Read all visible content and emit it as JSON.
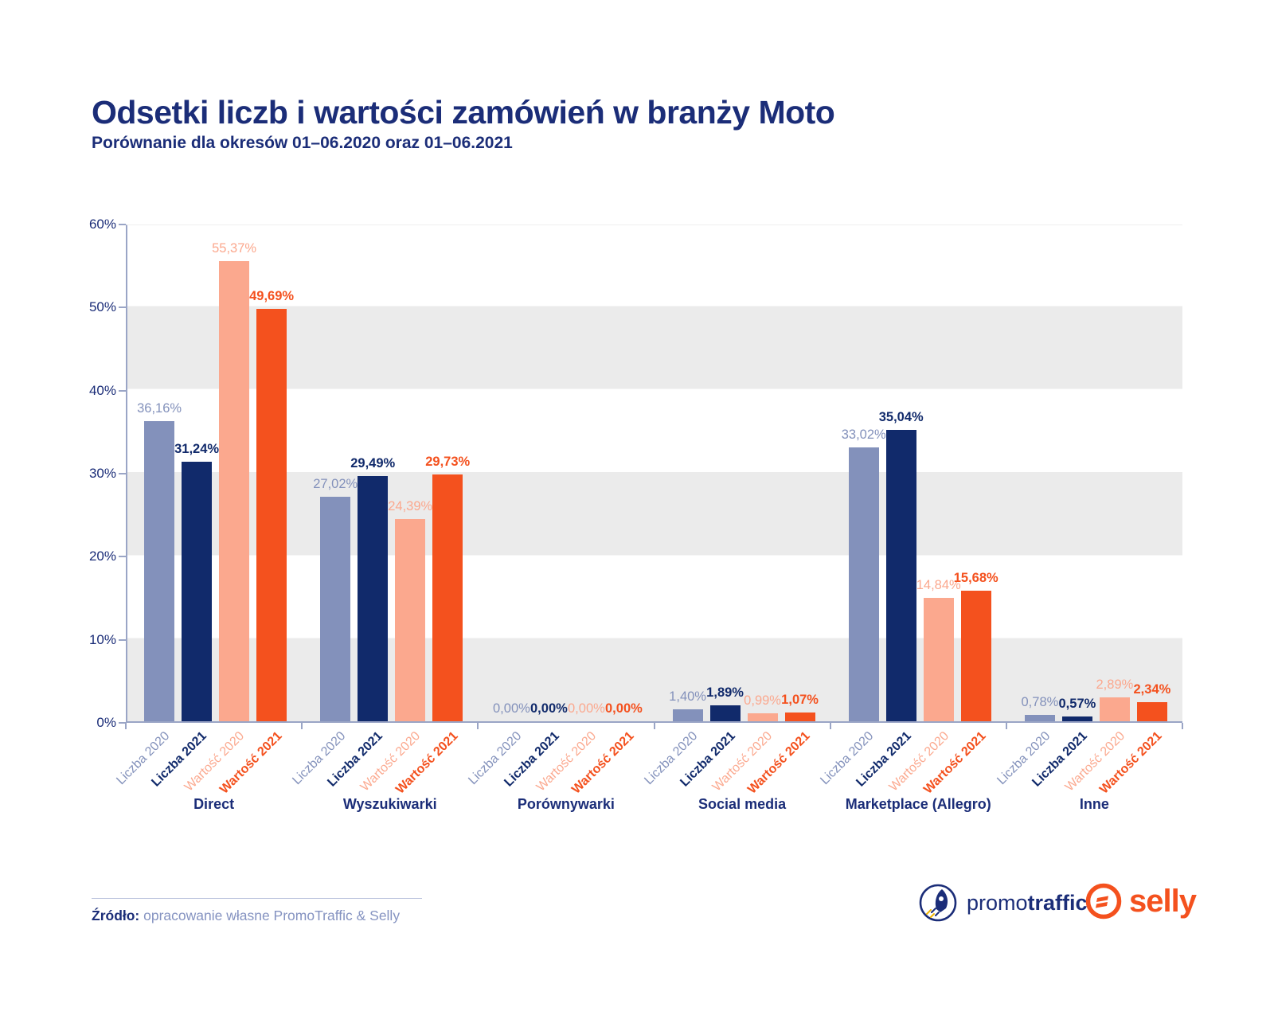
{
  "header": {
    "title": "Odsetki liczb i wartości zamówień w branży Moto",
    "subtitle": "Porównanie dla okresów 01–06.2020 oraz 01–06.2021"
  },
  "chart_data": {
    "type": "bar",
    "title": "Odsetki liczb i wartości zamówień w branży Moto",
    "categories": [
      "Direct",
      "Wyszukiwarki",
      "Porównywarki",
      "Social media",
      "Marketplace (Allegro)",
      "Inne"
    ],
    "series": [
      {
        "name": "Liczba 2020",
        "color": "#8391bb",
        "label_weight": 400,
        "values": [
          36.16,
          27.02,
          0.0,
          1.4,
          33.02,
          0.78
        ],
        "labels": [
          "36,16%",
          "27,02%",
          "0,00%",
          "1,40%",
          "33,02%",
          "0,78%"
        ]
      },
      {
        "name": "Liczba 2021",
        "color": "#112a6b",
        "label_weight": 700,
        "values": [
          31.24,
          29.49,
          0.0,
          1.89,
          35.04,
          0.57
        ],
        "labels": [
          "31,24%",
          "29,49%",
          "0,00%",
          "1,89%",
          "35,04%",
          "0,57%"
        ]
      },
      {
        "name": "Wartość 2020",
        "color": "#fba88e",
        "label_weight": 400,
        "values": [
          55.37,
          24.39,
          0.0,
          0.99,
          14.84,
          2.89
        ],
        "labels": [
          "55,37%",
          "24,39%",
          "0,00%",
          "0,99%",
          "14,84%",
          "2,89%"
        ]
      },
      {
        "name": "Wartość 2021",
        "color": "#f4511e",
        "label_weight": 600,
        "values": [
          49.69,
          29.73,
          0.0,
          1.07,
          15.68,
          2.34
        ],
        "labels": [
          "49,69%",
          "29,73%",
          "0,00%",
          "1,07%",
          "15,68%",
          "2,34%"
        ]
      }
    ],
    "ylim": [
      0,
      60
    ],
    "ytick_step": 10,
    "ytick_labels": [
      "0%",
      "10%",
      "20%",
      "30%",
      "40%",
      "50%",
      "60%"
    ],
    "grid": "horizontal-bands",
    "legend_position": "none",
    "band_colors": [
      "#ebebeb",
      "#ffffff"
    ],
    "axis_color": "#9aa5c6",
    "tick_label_color": "#1b2d78"
  },
  "footer": {
    "source_label": "Źródło:",
    "source_text": " opracowanie własne PromoTraffic & Selly",
    "logos": {
      "promotraffic_prefix": "promo",
      "promotraffic_suffix": "traffic",
      "selly_text": "selly",
      "promotraffic_color": "#1b2d78",
      "selly_color": "#f4511e"
    }
  }
}
